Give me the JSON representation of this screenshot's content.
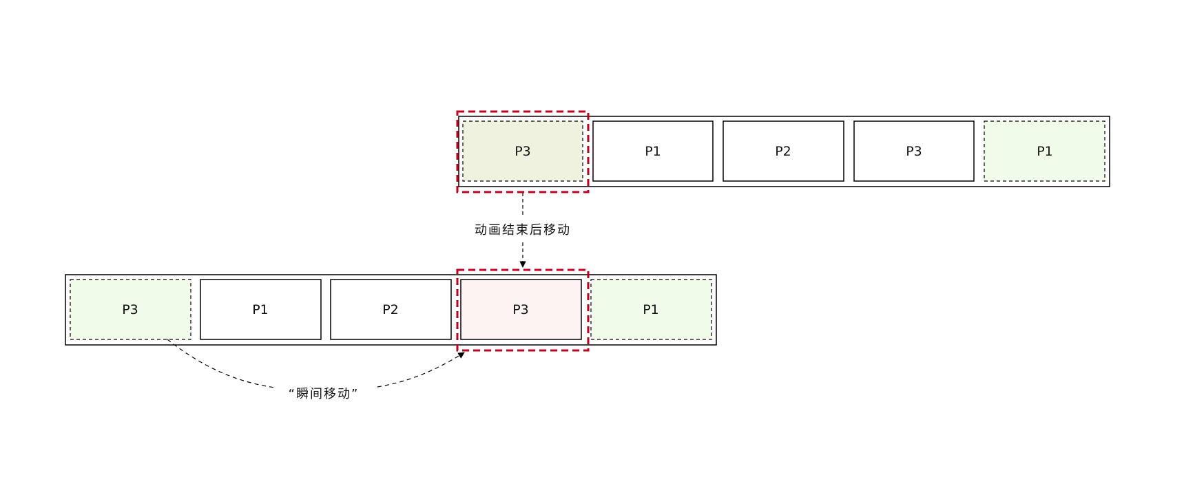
{
  "colors": {
    "outline": "#000000",
    "highlight_dash": "#c0001f",
    "clone_fill": "#f0fbe9",
    "current_fill_top": "#eef2de",
    "current_fill_bottom": "#fdf3f2"
  },
  "top_track": {
    "slides": [
      {
        "label": "P3",
        "style": "highlighted-clone"
      },
      {
        "label": "P1",
        "style": "normal"
      },
      {
        "label": "P2",
        "style": "normal"
      },
      {
        "label": "P3",
        "style": "normal"
      },
      {
        "label": "P1",
        "style": "clone"
      }
    ]
  },
  "bottom_track": {
    "slides": [
      {
        "label": "P3",
        "style": "clone"
      },
      {
        "label": "P1",
        "style": "normal"
      },
      {
        "label": "P2",
        "style": "normal"
      },
      {
        "label": "P3",
        "style": "current"
      },
      {
        "label": "P1",
        "style": "clone"
      }
    ]
  },
  "annotations": {
    "vertical_note": "动画结束后移动",
    "curve_note": "“瞬间移动”"
  }
}
